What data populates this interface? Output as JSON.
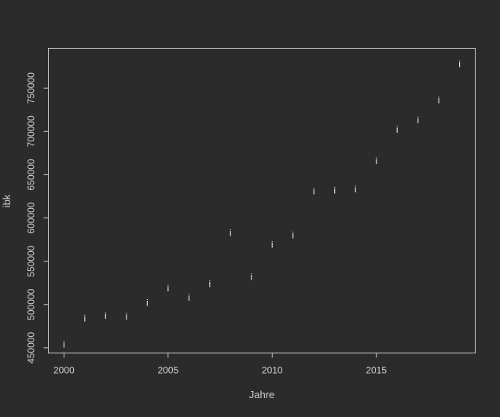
{
  "chart_data": {
    "type": "scatter",
    "title": "",
    "xlabel": "Jahre",
    "ylabel": "ibk",
    "point_marker": "i",
    "xlim": [
      1999.25,
      2019.75
    ],
    "ylim": [
      444000,
      796000
    ],
    "x_ticks": [
      2000,
      2005,
      2010,
      2015
    ],
    "y_ticks": [
      450000,
      500000,
      550000,
      600000,
      650000,
      700000,
      750000
    ],
    "series": [
      {
        "x": [
          2000,
          2001,
          2002,
          2003,
          2004,
          2005,
          2006,
          2007,
          2008,
          2009,
          2010,
          2011,
          2012,
          2013,
          2014,
          2015,
          2016,
          2017,
          2018,
          2019
        ],
        "y": [
          454000,
          484000,
          487000,
          486000,
          502000,
          519000,
          508000,
          524000,
          583000,
          532000,
          569000,
          580000,
          631000,
          632000,
          633000,
          666000,
          702000,
          713000,
          736000,
          778000
        ]
      }
    ],
    "grid": false,
    "colors": {
      "background": "#2b2b2b",
      "foreground": "#cfcfcf",
      "points": "#e6e6e6"
    }
  }
}
